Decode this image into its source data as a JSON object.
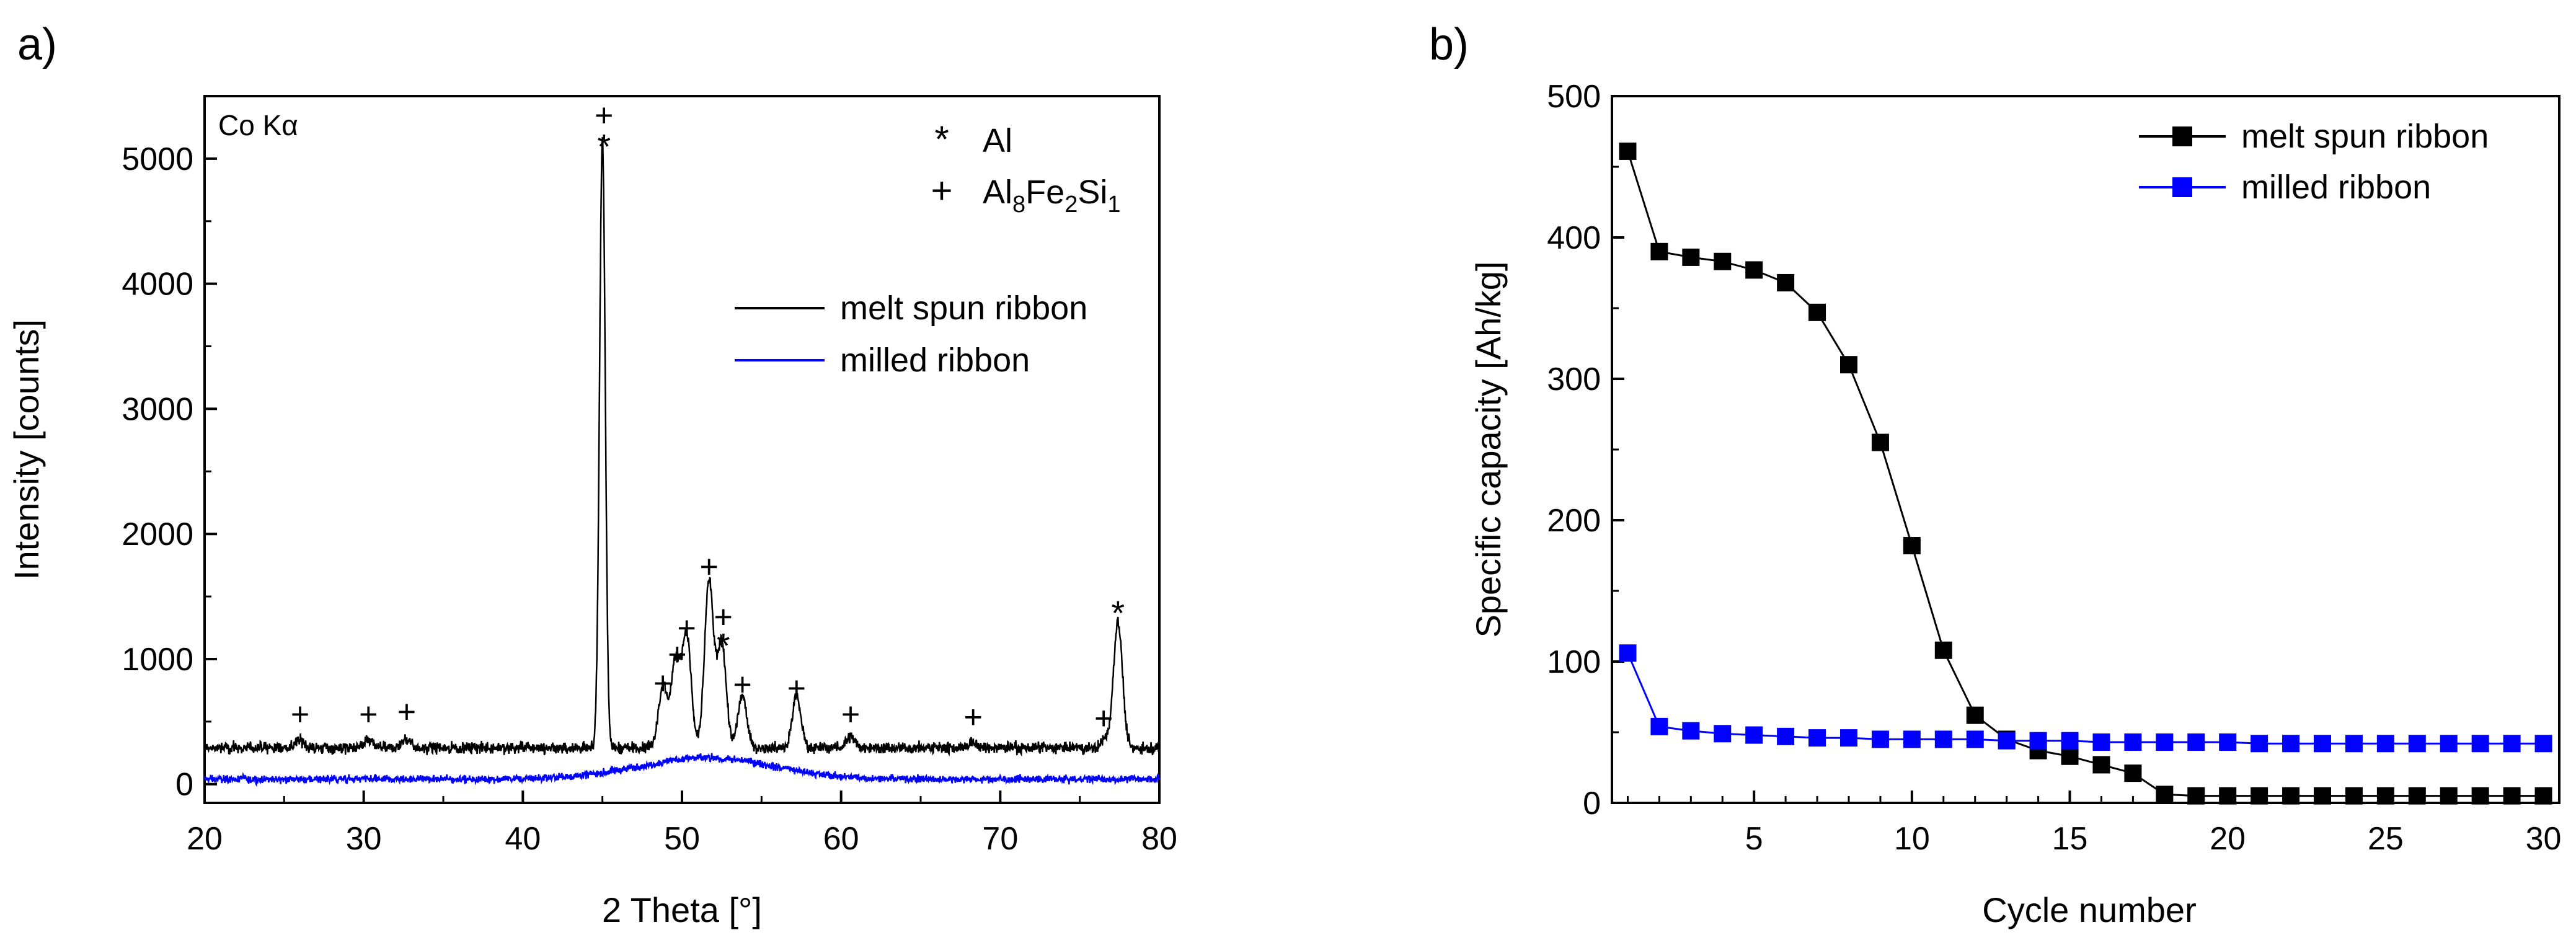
{
  "chart_data": [
    {
      "panel_label": "a)",
      "type": "line",
      "annotation": "Co Kα",
      "xlabel": "2 Theta [°]",
      "ylabel": "Intensity [counts]",
      "xlim": [
        20,
        80
      ],
      "ylim": [
        -150,
        5500
      ],
      "xticks": [
        20,
        30,
        40,
        50,
        60,
        70,
        80
      ],
      "yticks": [
        0,
        1000,
        2000,
        3000,
        4000,
        5000
      ],
      "grid": false,
      "legend_position": "right",
      "phase_legend": [
        {
          "symbol": "*",
          "label": "Al"
        },
        {
          "symbol": "+",
          "label": "Al",
          "sub1": "8",
          "mid1": "Fe",
          "sub2": "2",
          "mid2": "Si",
          "sub3": "1"
        }
      ],
      "series": [
        {
          "name": "melt spun ribbon",
          "color": "#000000",
          "baseline": 290,
          "peaks": [
            [
              26.0,
              60
            ],
            [
              30.3,
              60
            ],
            [
              32.7,
              70
            ],
            [
              45.0,
              4870
            ],
            [
              48.8,
              480
            ],
            [
              49.6,
              700
            ],
            [
              50.3,
              900
            ],
            [
              51.7,
              1330
            ],
            [
              52.5,
              830
            ],
            [
              53.8,
              420
            ],
            [
              57.2,
              410
            ],
            [
              60.6,
              90
            ],
            [
              68.2,
              40
            ],
            [
              76.6,
              60
            ],
            [
              77.4,
              1010
            ]
          ]
        },
        {
          "name": "milled ribbon",
          "color": "#0000ff",
          "baseline": 40,
          "hump_center": 51.5,
          "hump_height": 170
        }
      ],
      "peak_markers": [
        {
          "x": 26.0,
          "y": 560,
          "symbol": "+"
        },
        {
          "x": 30.3,
          "y": 560,
          "symbol": "+"
        },
        {
          "x": 32.7,
          "y": 580,
          "symbol": "+"
        },
        {
          "x": 45.1,
          "y": 5150,
          "symbol": "*"
        },
        {
          "x": 45.1,
          "y": 5350,
          "symbol": "+"
        },
        {
          "x": 48.8,
          "y": 810,
          "symbol": "+"
        },
        {
          "x": 49.7,
          "y": 1040,
          "symbol": "+"
        },
        {
          "x": 50.3,
          "y": 1250,
          "symbol": "+"
        },
        {
          "x": 51.7,
          "y": 1740,
          "symbol": "+"
        },
        {
          "x": 52.6,
          "y": 1340,
          "symbol": "+"
        },
        {
          "x": 52.6,
          "y": 1160,
          "symbol": "*"
        },
        {
          "x": 53.8,
          "y": 800,
          "symbol": "+"
        },
        {
          "x": 57.2,
          "y": 770,
          "symbol": "+"
        },
        {
          "x": 60.6,
          "y": 560,
          "symbol": "+"
        },
        {
          "x": 68.3,
          "y": 540,
          "symbol": "+"
        },
        {
          "x": 76.5,
          "y": 530,
          "symbol": "+"
        },
        {
          "x": 77.4,
          "y": 1420,
          "symbol": "*"
        }
      ]
    },
    {
      "panel_label": "b)",
      "type": "line",
      "xlabel": "Cycle number",
      "ylabel": "Specific capacity [Ah/kg]",
      "xlim": [
        0.5,
        30.5
      ],
      "ylim": [
        0,
        500
      ],
      "xticks": [
        5,
        10,
        15,
        20,
        25,
        30
      ],
      "yticks": [
        0,
        100,
        200,
        300,
        400,
        500
      ],
      "grid": false,
      "legend_position": "top-right",
      "x": [
        1,
        2,
        3,
        4,
        5,
        6,
        7,
        8,
        9,
        10,
        11,
        12,
        13,
        14,
        15,
        16,
        17,
        18,
        19,
        20,
        21,
        22,
        23,
        24,
        25,
        26,
        27,
        28,
        29,
        30
      ],
      "series": [
        {
          "name": "melt spun ribbon",
          "color": "#000000",
          "values": [
            461,
            390,
            386,
            383,
            377,
            368,
            347,
            310,
            255,
            182,
            108,
            62,
            45,
            37,
            33,
            27,
            21,
            6,
            5,
            5,
            5,
            5,
            5,
            5,
            5,
            5,
            5,
            5,
            5,
            5
          ]
        },
        {
          "name": "milled ribbon",
          "color": "#0000ff",
          "values": [
            106,
            54,
            51,
            49,
            48,
            47,
            46,
            46,
            45,
            45,
            45,
            45,
            44,
            44,
            44,
            43,
            43,
            43,
            43,
            43,
            42,
            42,
            42,
            42,
            42,
            42,
            42,
            42,
            42,
            42
          ]
        }
      ]
    }
  ]
}
